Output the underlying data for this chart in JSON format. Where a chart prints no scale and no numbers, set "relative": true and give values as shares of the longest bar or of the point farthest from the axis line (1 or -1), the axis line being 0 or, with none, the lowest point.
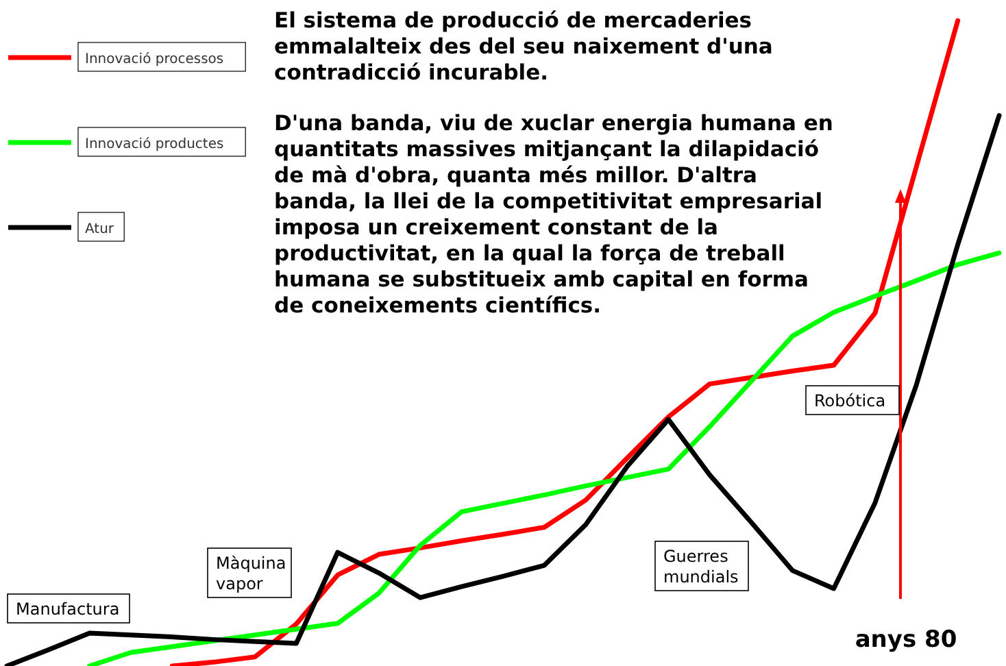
{
  "chart_data": {
    "type": "line",
    "relative": true,
    "legend": "top left",
    "categories": [
      null,
      null,
      null,
      null,
      null,
      null,
      null,
      null,
      null,
      null,
      null,
      null,
      null,
      null,
      null,
      null,
      null,
      null,
      null,
      null,
      null,
      null,
      null,
      null,
      null
    ],
    "annotations": [
      "El sistema de producció de mercaderies\nemmalalteix des del seu naixement d'una\ncontradicció incurable.",
      "D'una banda, viu de xuclar energia humana en\nquantitats massives mitjançant la dilapidació\nde mà d'obra, quanta més millor. D'altra\nbanda, la llei de la competitivitat empresarial\nimposa un creixement constant de la\nproductivitat, en la qual la força de treball\nhumana se substitueix amb capital en forma\nde coneixements científics.",
      "Manufactura",
      "Màquina\nvapor",
      "Guerres\nmundials",
      "Robótica",
      "anys 80"
    ],
    "series": [
      {
        "name": "Innovació processos",
        "color": "#ff0000",
        "values": [
          null,
          null,
          null,
          null,
          0,
          0.006,
          0.014,
          0.065,
          0.141,
          0.173,
          0.183,
          0.194,
          0.204,
          0.215,
          0.257,
          0.322,
          0.386,
          0.437,
          0.447,
          0.457,
          0.466,
          0.547,
          0.774,
          1,
          null
        ]
      },
      {
        "name": "Innovació productes",
        "color": "#00ff00",
        "values": [
          null,
          null,
          0,
          0.021,
          0.03,
          0.039,
          0.048,
          0.057,
          0.066,
          0.113,
          0.187,
          0.239,
          0.252,
          0.265,
          0.279,
          0.292,
          0.305,
          0.371,
          0.441,
          0.511,
          0.548,
          0.573,
          0.597,
          0.622,
          0.64
        ]
      },
      {
        "name": "Atur",
        "color": "#000000",
        "values": [
          0,
          0.025,
          0.051,
          0.048,
          0.045,
          0.041,
          0.038,
          0.035,
          0.176,
          0.144,
          0.106,
          0.123,
          0.139,
          0.156,
          0.219,
          0.309,
          0.382,
          0.296,
          0.223,
          0.148,
          0.12,
          0.253,
          0.436,
          0.653,
          0.853
        ]
      }
    ]
  }
}
